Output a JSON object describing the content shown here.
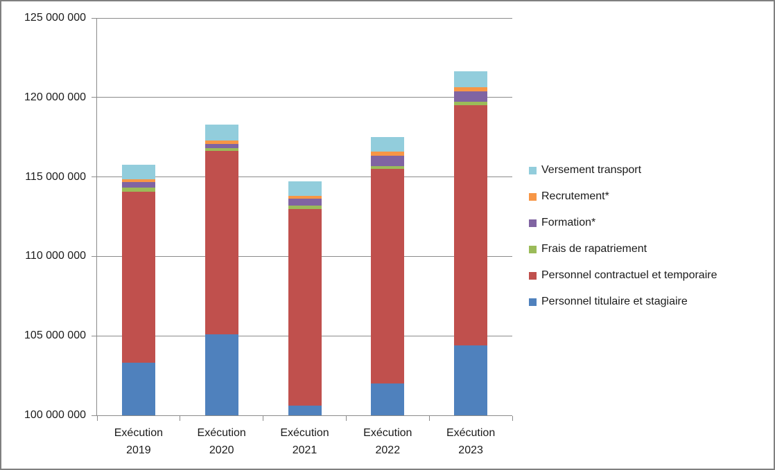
{
  "colors": {
    "grid": "#8A8A8A",
    "axis": "#8A8A8A",
    "frame_border": "#808080",
    "background": "#FFFFFF",
    "text": "#1A1A1A"
  },
  "chart_data": {
    "type": "bar",
    "stacked": true,
    "title": "",
    "xlabel": "",
    "ylabel": "",
    "grid": "horizontal",
    "legend_position": "right",
    "categories": [
      {
        "label": "Exécution 2019",
        "line1": "Exécution",
        "line2": "2019"
      },
      {
        "label": "Exécution 2020",
        "line1": "Exécution",
        "line2": "2020"
      },
      {
        "label": "Exécution 2021",
        "line1": "Exécution",
        "line2": "2021"
      },
      {
        "label": "Exécution 2022",
        "line1": "Exécution",
        "line2": "2022"
      },
      {
        "label": "Exécution 2023",
        "line1": "Exécution",
        "line2": "2023"
      }
    ],
    "y_axis": {
      "min": 100000000,
      "max": 125000000,
      "step": 5000000,
      "tick_values": [
        100000000,
        105000000,
        110000000,
        115000000,
        120000000,
        125000000
      ],
      "tick_labels": [
        "100 000 000",
        "105 000 000",
        "110 000 000",
        "115 000 000",
        "120 000 000",
        "125 000 000"
      ]
    },
    "series": [
      {
        "name": "Personnel titulaire et stagiaire",
        "color": "#4F81BD",
        "values": [
          103300000,
          105100000,
          100600000,
          102000000,
          104400000
        ]
      },
      {
        "name": "Personnel contractuel et temporaire",
        "color": "#C0504D",
        "values": [
          10750000,
          11550000,
          12400000,
          13500000,
          15100000
        ]
      },
      {
        "name": "Frais de rapatriement",
        "color": "#9BBB59",
        "values": [
          290000,
          170000,
          200000,
          170000,
          210000
        ]
      },
      {
        "name": "Formation*",
        "color": "#8064A2",
        "values": [
          330000,
          260000,
          440000,
          680000,
          680000
        ]
      },
      {
        "name": "Recrutement*",
        "color": "#F79646",
        "values": [
          180000,
          210000,
          170000,
          260000,
          260000
        ]
      },
      {
        "name": "Versement transport",
        "color": "#92CDDC",
        "values": [
          900000,
          990000,
          930000,
          920000,
          990000
        ]
      }
    ],
    "legend_labels": [
      "Versement transport",
      "Recrutement*",
      "Formation*",
      "Frais de rapatriement",
      "Personnel contractuel et temporaire",
      "Personnel titulaire et stagiaire"
    ]
  }
}
